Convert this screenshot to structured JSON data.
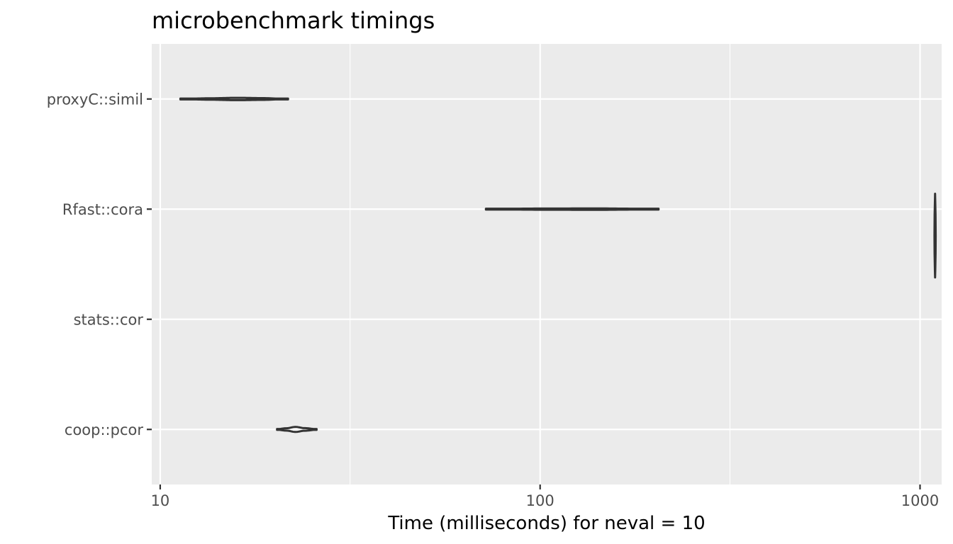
{
  "chart_data": {
    "type": "violin",
    "title": "microbenchmark timings",
    "xlabel": "Time (milliseconds) for neval = 10",
    "ylabel": "",
    "x_scale": "log10",
    "xlim": [
      9.5,
      1140
    ],
    "x_ticks": [
      10,
      100,
      1000
    ],
    "x_tick_labels": [
      "10",
      "100",
      "1000"
    ],
    "x_minor_ticks": [
      31.6,
      316
    ],
    "grid": true,
    "legend": "none",
    "categories": [
      "proxyC::simil",
      "Rfast::cora",
      "stats::cor",
      "coop::pcor"
    ],
    "series": [
      {
        "category": "proxyC::simil",
        "min": 11.3,
        "max": 21.7,
        "profile": [
          [
            11.3,
            0.02
          ],
          [
            13.5,
            0.12
          ],
          [
            16.0,
            0.2
          ],
          [
            18.5,
            0.15
          ],
          [
            21.7,
            0.02
          ]
        ]
      },
      {
        "category": "Rfast::cora",
        "min": 72,
        "max": 205,
        "profile": [
          [
            72,
            0.02
          ],
          [
            100,
            0.1
          ],
          [
            140,
            0.12
          ],
          [
            175,
            0.08
          ],
          [
            205,
            0.02
          ]
        ]
      },
      {
        "category": "stats::cor",
        "min": 1093,
        "max": 1098,
        "vertical_extent": [
          0.34,
          0.53
        ],
        "profile": [
          [
            1093,
            0.05
          ],
          [
            1095.5,
            1.0
          ],
          [
            1098,
            0.05
          ]
        ]
      },
      {
        "category": "coop::pcor",
        "min": 20.3,
        "max": 25.8,
        "profile": [
          [
            20.3,
            0.04
          ],
          [
            21.5,
            0.2
          ],
          [
            22.7,
            0.42
          ],
          [
            24.0,
            0.22
          ],
          [
            25.8,
            0.04
          ]
        ]
      }
    ]
  },
  "colors": {
    "panel": "#ebebeb",
    "grid": "#ffffff",
    "violin_fill": "#ffffff",
    "violin_outline": "#333333",
    "tick_label": "#4d4d4d"
  }
}
